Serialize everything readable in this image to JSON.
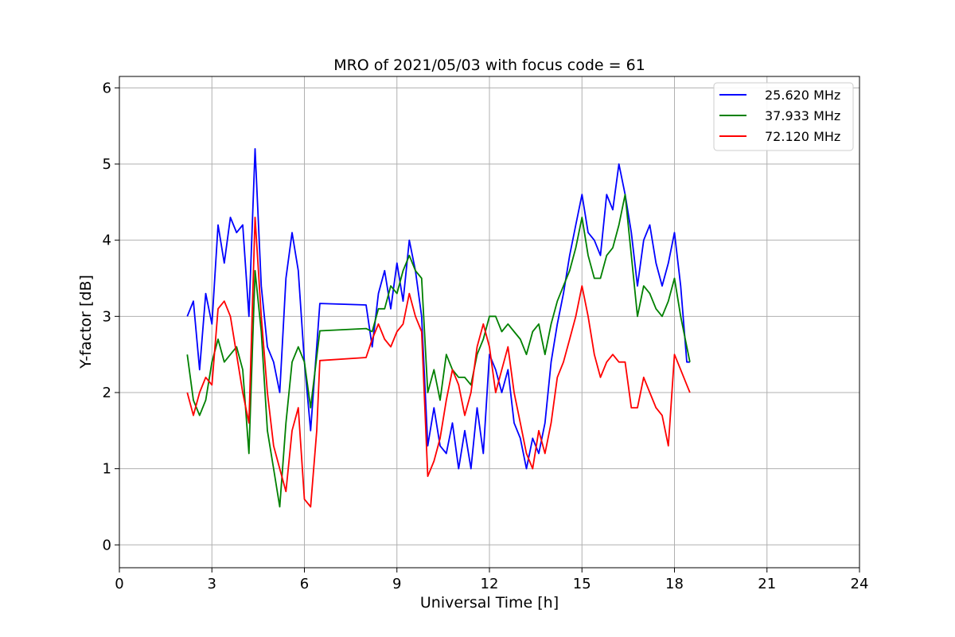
{
  "chart_data": {
    "type": "line",
    "title": "MRO of 2021/05/03 with focus code = 61",
    "xlabel": "Universal Time [h]",
    "ylabel": "Y-factor [dB]",
    "xlim": [
      0,
      24
    ],
    "ylim": [
      -0.3,
      6.15
    ],
    "x_ticks": [
      0,
      3,
      6,
      9,
      12,
      15,
      18,
      21,
      24
    ],
    "y_ticks": [
      0,
      1,
      2,
      3,
      4,
      5,
      6
    ],
    "grid": true,
    "legend_position": "top-right",
    "series": [
      {
        "name": "25.620 MHz",
        "color": "#0000ff",
        "points": [
          [
            2.2,
            3.0
          ],
          [
            2.4,
            3.2
          ],
          [
            2.6,
            2.3
          ],
          [
            2.8,
            3.3
          ],
          [
            3.0,
            2.9
          ],
          [
            3.2,
            4.2
          ],
          [
            3.4,
            3.7
          ],
          [
            3.6,
            4.3
          ],
          [
            3.8,
            4.1
          ],
          [
            4.0,
            4.2
          ],
          [
            4.2,
            3.0
          ],
          [
            4.4,
            5.2
          ],
          [
            4.6,
            3.4
          ],
          [
            4.8,
            2.6
          ],
          [
            5.0,
            2.4
          ],
          [
            5.2,
            2.0
          ],
          [
            5.4,
            3.5
          ],
          [
            5.6,
            4.1
          ],
          [
            5.8,
            3.6
          ],
          [
            6.0,
            2.4
          ],
          [
            6.2,
            1.5
          ],
          [
            6.5,
            3.17
          ],
          [
            8.0,
            3.15
          ],
          [
            8.2,
            2.6
          ],
          [
            8.4,
            3.3
          ],
          [
            8.6,
            3.6
          ],
          [
            8.8,
            3.1
          ],
          [
            9.0,
            3.7
          ],
          [
            9.2,
            3.2
          ],
          [
            9.4,
            4.0
          ],
          [
            9.6,
            3.6
          ],
          [
            9.8,
            3.0
          ],
          [
            10.0,
            1.3
          ],
          [
            10.2,
            1.8
          ],
          [
            10.4,
            1.3
          ],
          [
            10.6,
            1.2
          ],
          [
            10.8,
            1.6
          ],
          [
            11.0,
            1.0
          ],
          [
            11.2,
            1.5
          ],
          [
            11.4,
            1.0
          ],
          [
            11.6,
            1.8
          ],
          [
            11.8,
            1.2
          ],
          [
            12.0,
            2.5
          ],
          [
            12.2,
            2.3
          ],
          [
            12.4,
            2.0
          ],
          [
            12.6,
            2.3
          ],
          [
            12.8,
            1.6
          ],
          [
            13.0,
            1.4
          ],
          [
            13.2,
            1.0
          ],
          [
            13.4,
            1.4
          ],
          [
            13.6,
            1.2
          ],
          [
            13.8,
            1.6
          ],
          [
            14.0,
            2.4
          ],
          [
            14.2,
            2.9
          ],
          [
            14.4,
            3.3
          ],
          [
            14.6,
            3.8
          ],
          [
            14.8,
            4.2
          ],
          [
            15.0,
            4.6
          ],
          [
            15.2,
            4.1
          ],
          [
            15.4,
            4.0
          ],
          [
            15.6,
            3.8
          ],
          [
            15.8,
            4.6
          ],
          [
            16.0,
            4.4
          ],
          [
            16.2,
            5.0
          ],
          [
            16.4,
            4.6
          ],
          [
            16.6,
            4.1
          ],
          [
            16.8,
            3.4
          ],
          [
            17.0,
            4.0
          ],
          [
            17.2,
            4.2
          ],
          [
            17.4,
            3.7
          ],
          [
            17.6,
            3.4
          ],
          [
            17.8,
            3.7
          ],
          [
            18.0,
            4.1
          ],
          [
            18.2,
            3.4
          ],
          [
            18.4,
            2.4
          ],
          [
            18.5,
            2.4
          ]
        ]
      },
      {
        "name": "37.933 MHz",
        "color": "#008000",
        "points": [
          [
            2.2,
            2.5
          ],
          [
            2.4,
            1.9
          ],
          [
            2.6,
            1.7
          ],
          [
            2.8,
            1.9
          ],
          [
            3.0,
            2.4
          ],
          [
            3.2,
            2.7
          ],
          [
            3.4,
            2.4
          ],
          [
            3.6,
            2.5
          ],
          [
            3.8,
            2.6
          ],
          [
            4.0,
            2.3
          ],
          [
            4.2,
            1.2
          ],
          [
            4.4,
            3.6
          ],
          [
            4.6,
            2.8
          ],
          [
            4.8,
            1.5
          ],
          [
            5.0,
            1.0
          ],
          [
            5.2,
            0.5
          ],
          [
            5.4,
            1.6
          ],
          [
            5.6,
            2.4
          ],
          [
            5.8,
            2.6
          ],
          [
            6.0,
            2.4
          ],
          [
            6.2,
            1.8
          ],
          [
            6.5,
            2.81
          ],
          [
            8.0,
            2.84
          ],
          [
            8.2,
            2.8
          ],
          [
            8.4,
            3.1
          ],
          [
            8.6,
            3.1
          ],
          [
            8.8,
            3.4
          ],
          [
            9.0,
            3.3
          ],
          [
            9.2,
            3.6
          ],
          [
            9.4,
            3.8
          ],
          [
            9.6,
            3.6
          ],
          [
            9.8,
            3.5
          ],
          [
            10.0,
            2.0
          ],
          [
            10.2,
            2.3
          ],
          [
            10.4,
            1.9
          ],
          [
            10.6,
            2.5
          ],
          [
            10.8,
            2.3
          ],
          [
            11.0,
            2.2
          ],
          [
            11.2,
            2.2
          ],
          [
            11.4,
            2.1
          ],
          [
            11.6,
            2.5
          ],
          [
            11.8,
            2.7
          ],
          [
            12.0,
            3.0
          ],
          [
            12.2,
            3.0
          ],
          [
            12.4,
            2.8
          ],
          [
            12.6,
            2.9
          ],
          [
            12.8,
            2.8
          ],
          [
            13.0,
            2.7
          ],
          [
            13.2,
            2.5
          ],
          [
            13.4,
            2.8
          ],
          [
            13.6,
            2.9
          ],
          [
            13.8,
            2.5
          ],
          [
            14.0,
            2.9
          ],
          [
            14.2,
            3.2
          ],
          [
            14.4,
            3.4
          ],
          [
            14.6,
            3.6
          ],
          [
            14.8,
            3.9
          ],
          [
            15.0,
            4.3
          ],
          [
            15.2,
            3.8
          ],
          [
            15.4,
            3.5
          ],
          [
            15.6,
            3.5
          ],
          [
            15.8,
            3.8
          ],
          [
            16.0,
            3.9
          ],
          [
            16.2,
            4.2
          ],
          [
            16.4,
            4.6
          ],
          [
            16.6,
            3.8
          ],
          [
            16.8,
            3.0
          ],
          [
            17.0,
            3.4
          ],
          [
            17.2,
            3.3
          ],
          [
            17.4,
            3.1
          ],
          [
            17.6,
            3.0
          ],
          [
            17.8,
            3.2
          ],
          [
            18.0,
            3.5
          ],
          [
            18.2,
            3.0
          ],
          [
            18.4,
            2.6
          ],
          [
            18.5,
            2.4
          ]
        ]
      },
      {
        "name": "72.120 MHz",
        "color": "#ff0000",
        "points": [
          [
            2.2,
            2.0
          ],
          [
            2.4,
            1.7
          ],
          [
            2.6,
            2.0
          ],
          [
            2.8,
            2.2
          ],
          [
            3.0,
            2.1
          ],
          [
            3.2,
            3.1
          ],
          [
            3.4,
            3.2
          ],
          [
            3.6,
            3.0
          ],
          [
            3.8,
            2.5
          ],
          [
            4.0,
            2.0
          ],
          [
            4.2,
            1.6
          ],
          [
            4.4,
            4.3
          ],
          [
            4.6,
            3.0
          ],
          [
            4.8,
            2.0
          ],
          [
            5.0,
            1.3
          ],
          [
            5.2,
            1.0
          ],
          [
            5.4,
            0.7
          ],
          [
            5.6,
            1.5
          ],
          [
            5.8,
            1.8
          ],
          [
            6.0,
            0.6
          ],
          [
            6.2,
            0.5
          ],
          [
            6.4,
            1.5
          ],
          [
            6.5,
            2.42
          ],
          [
            8.0,
            2.46
          ],
          [
            8.2,
            2.7
          ],
          [
            8.4,
            2.9
          ],
          [
            8.6,
            2.7
          ],
          [
            8.8,
            2.6
          ],
          [
            9.0,
            2.8
          ],
          [
            9.2,
            2.9
          ],
          [
            9.4,
            3.3
          ],
          [
            9.6,
            3.0
          ],
          [
            9.8,
            2.8
          ],
          [
            10.0,
            0.9
          ],
          [
            10.2,
            1.1
          ],
          [
            10.4,
            1.4
          ],
          [
            10.6,
            1.9
          ],
          [
            10.8,
            2.3
          ],
          [
            11.0,
            2.1
          ],
          [
            11.2,
            1.7
          ],
          [
            11.4,
            2.0
          ],
          [
            11.6,
            2.6
          ],
          [
            11.8,
            2.9
          ],
          [
            12.0,
            2.6
          ],
          [
            12.2,
            2.0
          ],
          [
            12.4,
            2.3
          ],
          [
            12.6,
            2.6
          ],
          [
            12.8,
            2.0
          ],
          [
            13.0,
            1.6
          ],
          [
            13.2,
            1.2
          ],
          [
            13.4,
            1.0
          ],
          [
            13.6,
            1.5
          ],
          [
            13.8,
            1.2
          ],
          [
            14.0,
            1.6
          ],
          [
            14.2,
            2.2
          ],
          [
            14.4,
            2.4
          ],
          [
            14.6,
            2.7
          ],
          [
            14.8,
            3.0
          ],
          [
            15.0,
            3.4
          ],
          [
            15.2,
            3.0
          ],
          [
            15.4,
            2.5
          ],
          [
            15.6,
            2.2
          ],
          [
            15.8,
            2.4
          ],
          [
            16.0,
            2.5
          ],
          [
            16.2,
            2.4
          ],
          [
            16.4,
            2.4
          ],
          [
            16.6,
            1.8
          ],
          [
            16.8,
            1.8
          ],
          [
            17.0,
            2.2
          ],
          [
            17.2,
            2.0
          ],
          [
            17.4,
            1.8
          ],
          [
            17.6,
            1.7
          ],
          [
            17.8,
            1.3
          ],
          [
            18.0,
            2.5
          ],
          [
            18.2,
            2.3
          ],
          [
            18.4,
            2.1
          ],
          [
            18.5,
            2.0
          ]
        ]
      }
    ]
  }
}
